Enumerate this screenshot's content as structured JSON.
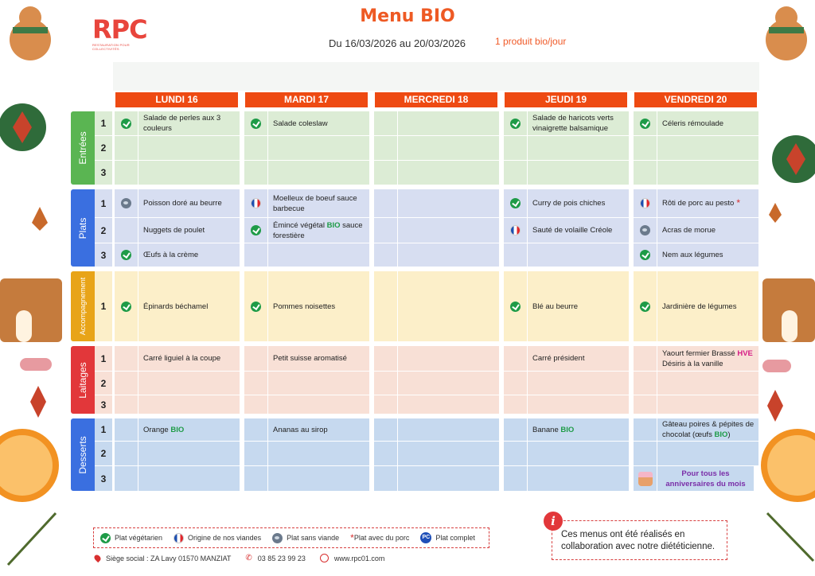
{
  "brand": {
    "logo": "RPC",
    "tagline": "RESTAURATION POUR COLLECTIVITÉS"
  },
  "title": "Menu BIO",
  "period": "Du 16/03/2026 au 20/03/2026",
  "bio_note": "1 produit bio/jour",
  "days": [
    "LUNDI 16",
    "MARDI 17",
    "MERCREDI 18",
    "JEUDI 19",
    "VENDREDI 20"
  ],
  "colors": {
    "header": "#ee4a12"
  },
  "sections": [
    {
      "label": "Entrées",
      "color": "#5ab552",
      "bg": "#dcecd5",
      "rows": [
        {
          "num": "1",
          "cells": [
            {
              "icon": "veg",
              "text": [
                "Salade de perles aux 3 couleurs"
              ]
            },
            {
              "icon": "veg",
              "text": [
                "Salade coleslaw"
              ]
            },
            {
              "icon": "",
              "text": []
            },
            {
              "icon": "veg",
              "text": [
                "Salade de haricots verts vinaigrette balsamique"
              ]
            },
            {
              "icon": "veg",
              "text": [
                "Céleris rémoulade"
              ]
            }
          ]
        },
        {
          "num": "2",
          "cells": [
            {
              "icon": "",
              "text": []
            },
            {
              "icon": "",
              "text": []
            },
            {
              "icon": "",
              "text": []
            },
            {
              "icon": "",
              "text": []
            },
            {
              "icon": "",
              "text": []
            }
          ]
        },
        {
          "num": "3",
          "cells": [
            {
              "icon": "",
              "text": []
            },
            {
              "icon": "",
              "text": []
            },
            {
              "icon": "",
              "text": []
            },
            {
              "icon": "",
              "text": []
            },
            {
              "icon": "",
              "text": []
            }
          ]
        }
      ]
    },
    {
      "label": "Plats",
      "color": "#3a6fe0",
      "bg": "#d7def1",
      "rows": [
        {
          "num": "1",
          "cells": [
            {
              "icon": "fish",
              "text": [
                "Poisson doré au beurre"
              ]
            },
            {
              "icon": "fr",
              "text": [
                "Moelleux de boeuf sauce barbecue"
              ]
            },
            {
              "icon": "",
              "text": []
            },
            {
              "icon": "veg",
              "text": [
                "Curry de pois chiches"
              ]
            },
            {
              "icon": "fr",
              "text": [
                "Rôti de porc au pesto"
              ],
              "pork": true
            }
          ]
        },
        {
          "num": "2",
          "cells": [
            {
              "icon": "",
              "text": [
                "Nuggets de poulet"
              ]
            },
            {
              "icon": "veg",
              "text": [
                "Émincé végétal ",
                {
                  "bio": "BIO"
                },
                " sauce forestière"
              ]
            },
            {
              "icon": "",
              "text": []
            },
            {
              "icon": "fr",
              "text": [
                "Sauté de volaille Créole"
              ]
            },
            {
              "icon": "fish",
              "text": [
                "Acras de morue"
              ]
            }
          ]
        },
        {
          "num": "3",
          "cells": [
            {
              "icon": "veg",
              "text": [
                "Œufs à la crème"
              ]
            },
            {
              "icon": "",
              "text": []
            },
            {
              "icon": "",
              "text": []
            },
            {
              "icon": "",
              "text": []
            },
            {
              "icon": "veg",
              "text": [
                "Nem aux légumes"
              ]
            }
          ]
        }
      ]
    },
    {
      "label": "Accompagnement",
      "color": "#e8a418",
      "bg": "#fcefc9",
      "rows": [
        {
          "num": "1",
          "cells": [
            {
              "icon": "veg",
              "text": [
                "Épinards béchamel"
              ]
            },
            {
              "icon": "veg",
              "text": [
                "Pommes noisettes"
              ]
            },
            {
              "icon": "",
              "text": []
            },
            {
              "icon": "veg",
              "text": [
                "Blé au beurre"
              ]
            },
            {
              "icon": "veg",
              "text": [
                "Jardinière de légumes"
              ]
            }
          ]
        }
      ]
    },
    {
      "label": "Laitages",
      "color": "#e2373a",
      "bg": "#f8e0d6",
      "rows": [
        {
          "num": "1",
          "cells": [
            {
              "icon": "",
              "text": [
                "Carré liguiel à la coupe"
              ]
            },
            {
              "icon": "",
              "text": [
                "Petit suisse aromatisé"
              ]
            },
            {
              "icon": "",
              "text": []
            },
            {
              "icon": "",
              "text": [
                "Carré président"
              ]
            },
            {
              "icon": "",
              "text": [
                "Yaourt fermier Brassé ",
                {
                  "hve": "HVE"
                },
                " Désiris à la vanille"
              ]
            }
          ]
        },
        {
          "num": "2",
          "cells": [
            {
              "icon": "",
              "text": []
            },
            {
              "icon": "",
              "text": []
            },
            {
              "icon": "",
              "text": []
            },
            {
              "icon": "",
              "text": []
            },
            {
              "icon": "",
              "text": []
            }
          ]
        },
        {
          "num": "3",
          "cells": [
            {
              "icon": "",
              "text": []
            },
            {
              "icon": "",
              "text": []
            },
            {
              "icon": "",
              "text": []
            },
            {
              "icon": "",
              "text": []
            },
            {
              "icon": "",
              "text": []
            }
          ]
        }
      ]
    },
    {
      "label": "Desserts",
      "color": "#3a6fe0",
      "bg": "#c6d9ef",
      "rows": [
        {
          "num": "1",
          "cells": [
            {
              "icon": "",
              "text": [
                "Orange ",
                {
                  "bio": "BIO"
                }
              ]
            },
            {
              "icon": "",
              "text": [
                "Ananas au sirop"
              ]
            },
            {
              "icon": "",
              "text": []
            },
            {
              "icon": "",
              "text": [
                "Banane ",
                {
                  "bio": "BIO"
                }
              ]
            },
            {
              "icon": "",
              "text": [
                "Gâteau poires & pépites de chocolat (œufs ",
                {
                  "bio": "BIO"
                },
                ")"
              ]
            }
          ]
        },
        {
          "num": "2",
          "cells": [
            {
              "icon": "",
              "text": []
            },
            {
              "icon": "",
              "text": []
            },
            {
              "icon": "",
              "text": []
            },
            {
              "icon": "",
              "text": []
            },
            {
              "icon": "",
              "text": []
            }
          ]
        },
        {
          "num": "3",
          "cells": [
            {
              "icon": "",
              "text": []
            },
            {
              "icon": "",
              "text": []
            },
            {
              "icon": "",
              "text": []
            },
            {
              "icon": "",
              "text": []
            },
            {
              "icon": "cake",
              "text": [
                {
                  "purple": "Pour tous les anniversaires du mois"
                }
              ]
            }
          ]
        }
      ]
    }
  ],
  "legend": [
    {
      "icon": "veg",
      "label": "Plat végétarien"
    },
    {
      "icon": "fr",
      "label": "Origine de nos viandes"
    },
    {
      "icon": "fish",
      "label": "Plat sans viande"
    },
    {
      "icon": "pork",
      "label": "Plat avec du porc"
    },
    {
      "icon": "pc",
      "label": "Plat complet"
    }
  ],
  "contact": {
    "address": "Siège social : ZA Lavy 01570 MANZIAT",
    "phone": "03 85 23 99 23",
    "website": "www.rpc01.com"
  },
  "info": {
    "icon": "info-icon",
    "text": "Ces menus ont été réalisés en collaboration avec notre diététicienne."
  }
}
